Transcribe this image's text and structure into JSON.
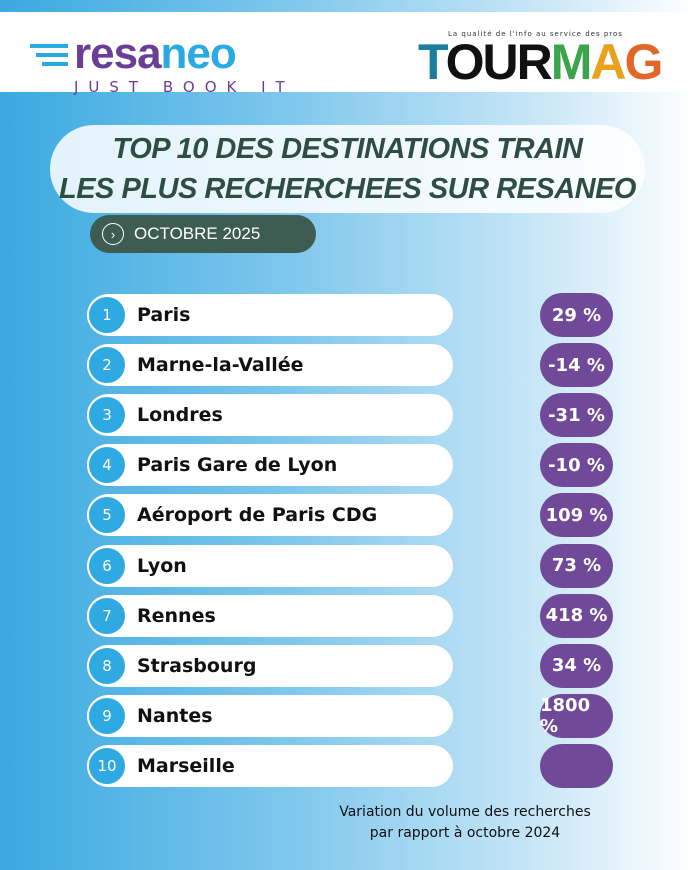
{
  "logos": {
    "resaneo": {
      "part1": "resa",
      "part2": "neo",
      "tagline": "JUST BOOK IT"
    },
    "tourmag": {
      "tagline": "La qualité de l'info au service des pros",
      "word": "TOURMAG"
    }
  },
  "title": {
    "line1": "TOP 10 DES DESTINATIONS TRAIN",
    "line2": "LES PLUS RECHERCHEES SUR RESANEO"
  },
  "period": "OCTOBRE 2025",
  "ranking": [
    {
      "rank": "1",
      "city": "Paris",
      "variation": "29 %"
    },
    {
      "rank": "2",
      "city": "Marne-la-Vallée",
      "variation": "-14 %"
    },
    {
      "rank": "3",
      "city": "Londres",
      "variation": "-31 %"
    },
    {
      "rank": "4",
      "city": "Paris Gare de Lyon",
      "variation": "-10 %"
    },
    {
      "rank": "5",
      "city": "Aéroport de Paris CDG",
      "variation": "109 %"
    },
    {
      "rank": "6",
      "city": "Lyon",
      "variation": "73 %"
    },
    {
      "rank": "7",
      "city": "Rennes",
      "variation": "418 %"
    },
    {
      "rank": "8",
      "city": "Strasbourg",
      "variation": "34 %"
    },
    {
      "rank": "9",
      "city": "Nantes",
      "variation": "1800 %"
    },
    {
      "rank": "10",
      "city": "Marseille",
      "variation": ""
    }
  ],
  "footnote": {
    "line1": "Variation du volume des recherches",
    "line2": "par rapport à octobre 2024"
  },
  "colors": {
    "blue": "#2fa9e1",
    "purple": "#704a99",
    "dark_green": "#3f5c53"
  }
}
